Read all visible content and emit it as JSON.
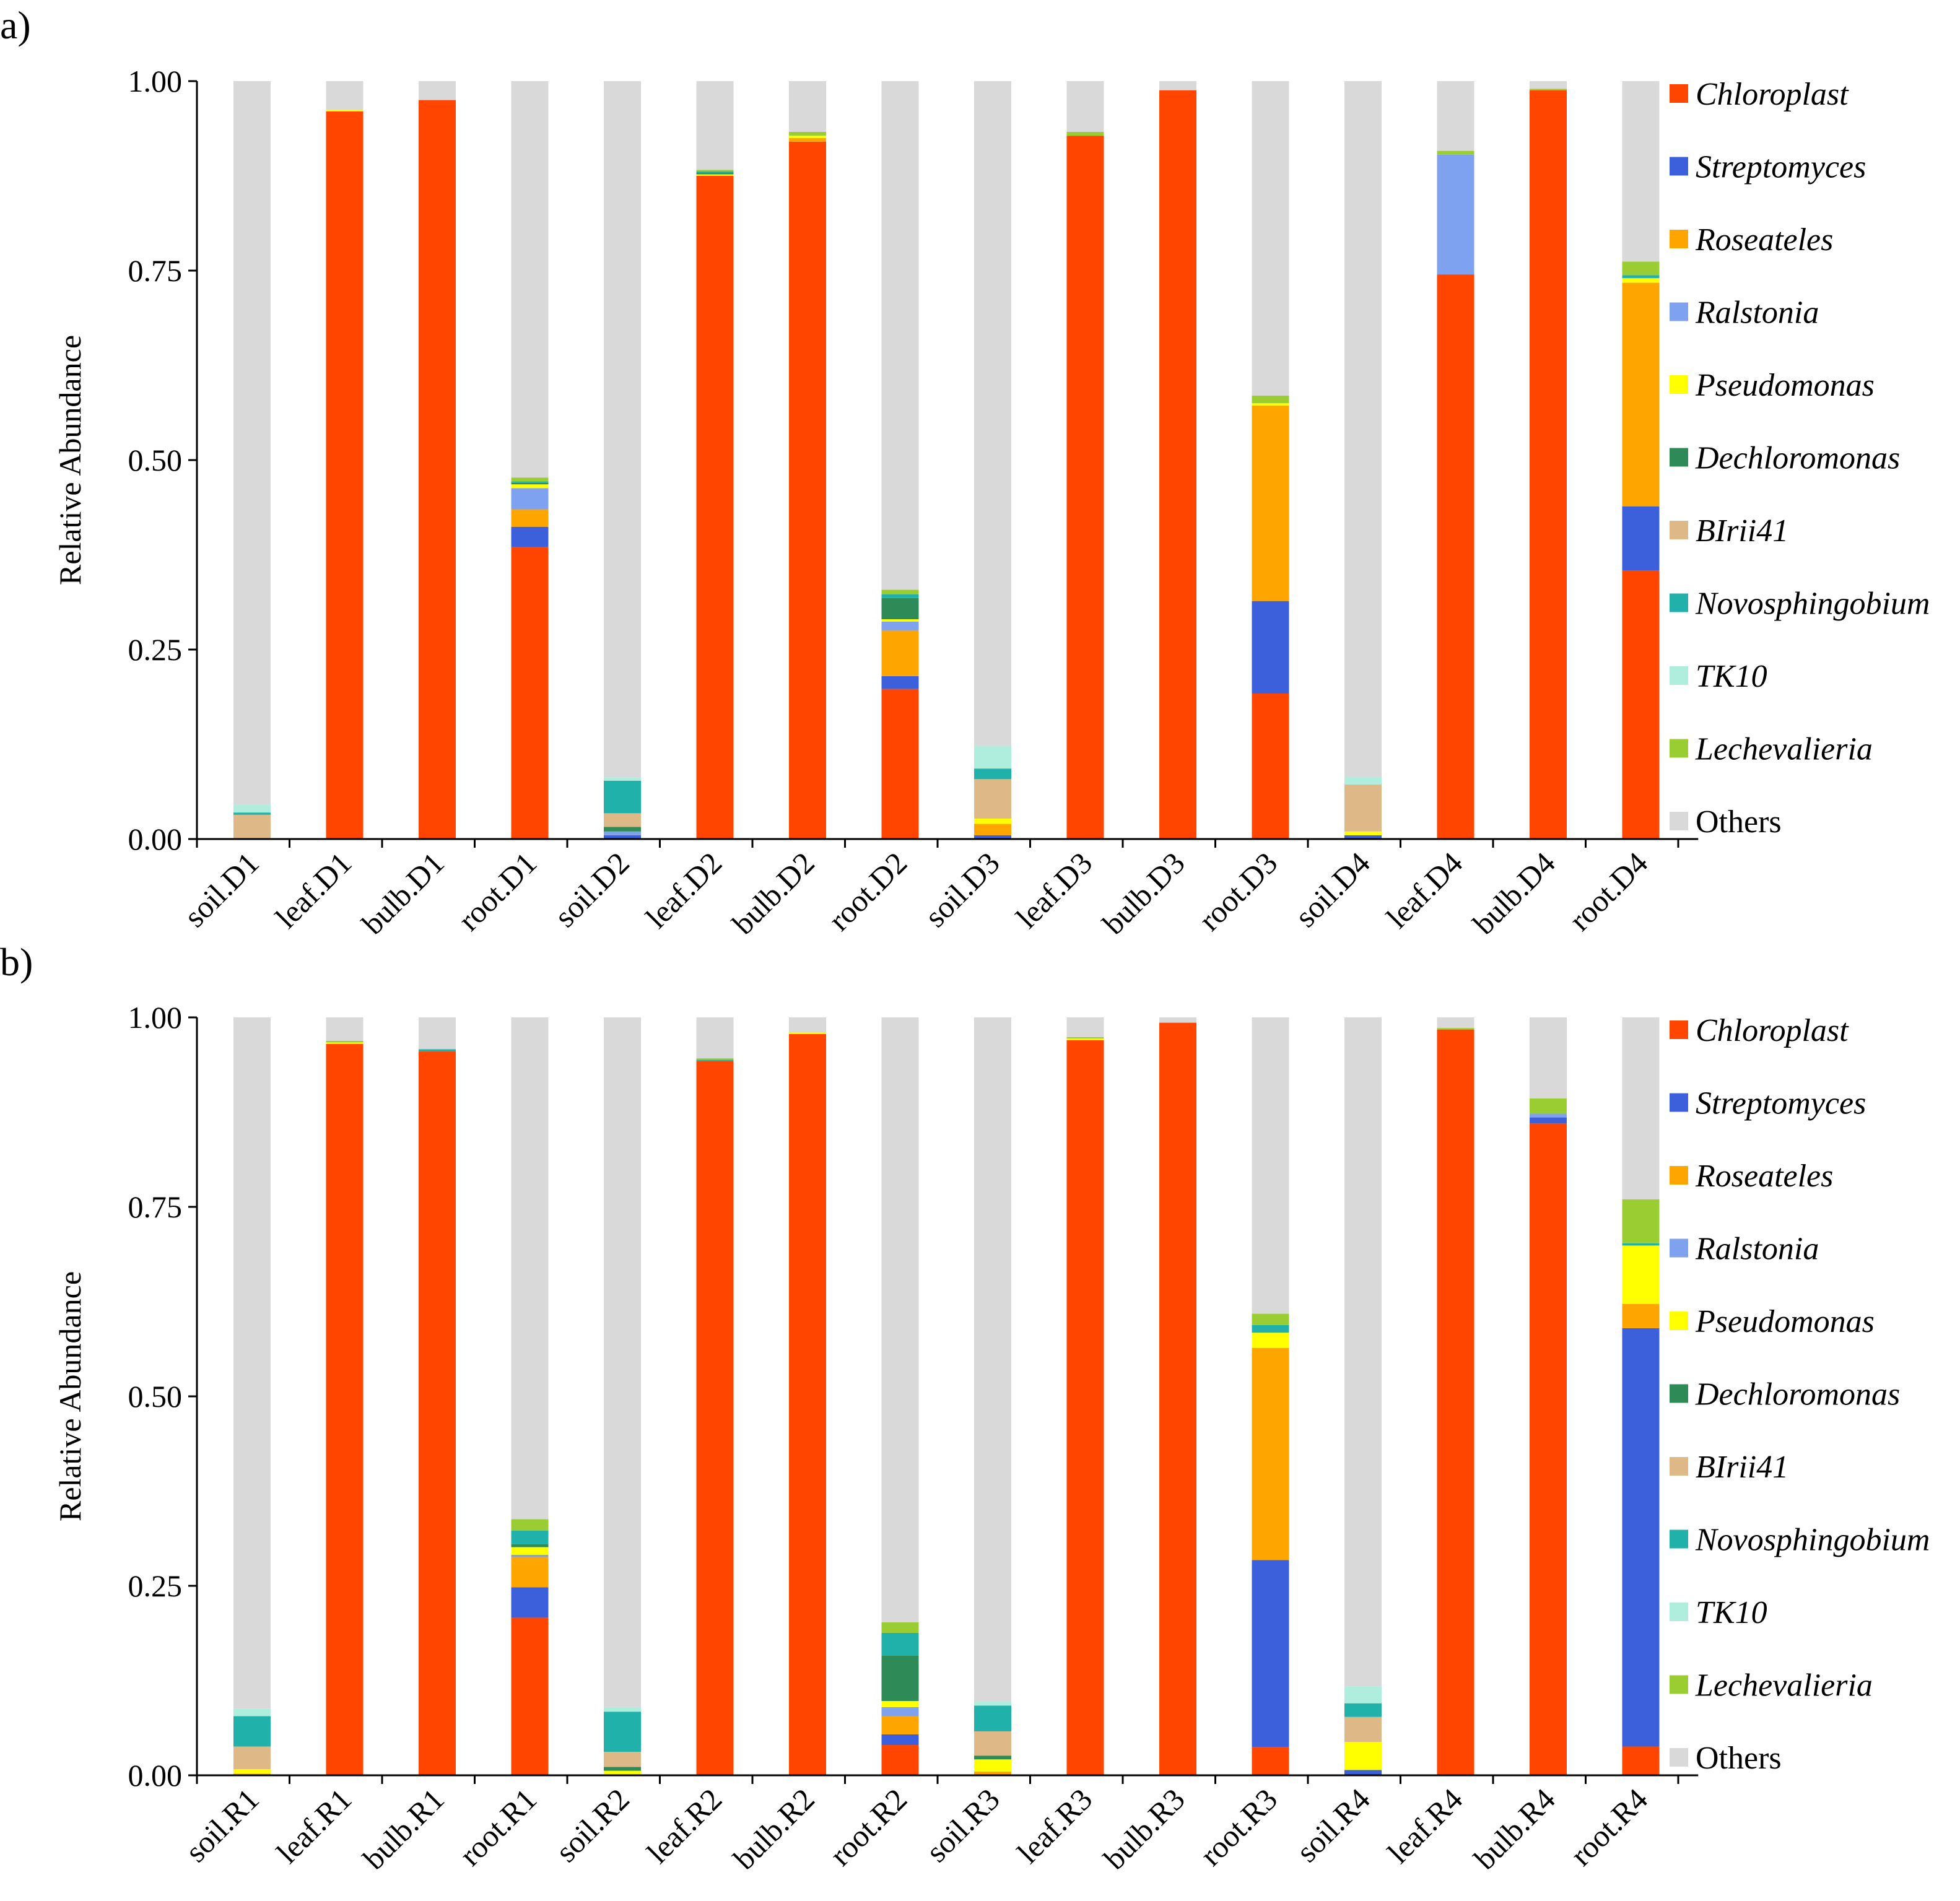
{
  "chart_data": [
    {
      "type": "stacked-bar",
      "panel_label": "a)",
      "ylabel": "Relative Abundance",
      "ylim": [
        0,
        1
      ],
      "yticks": [
        "0.00",
        "0.25",
        "0.50",
        "0.75",
        "1.00"
      ],
      "categories": [
        "soil.D1",
        "leaf.D1",
        "bulb.D1",
        "root.D1",
        "soil.D2",
        "leaf.D2",
        "bulb.D2",
        "root.D2",
        "soil.D3",
        "leaf.D3",
        "bulb.D3",
        "root.D3",
        "soil.D4",
        "leaf.D4",
        "bulb.D4",
        "root.D4"
      ],
      "series": [
        {
          "name": "Chloroplast",
          "color": "#FF4500",
          "values": [
            0.0,
            0.96,
            0.975,
            0.385,
            0.0,
            0.875,
            0.92,
            0.198,
            0.0,
            0.928,
            0.988,
            0.192,
            0.0,
            0.745,
            0.988,
            0.354
          ]
        },
        {
          "name": "Streptomyces",
          "color": "#3C5FDC",
          "values": [
            0.0,
            0.0,
            0.0,
            0.027,
            0.005,
            0.0,
            0.0,
            0.017,
            0.005,
            0.0,
            0.0,
            0.122,
            0.005,
            0.0,
            0.0,
            0.085
          ]
        },
        {
          "name": "Roseateles",
          "color": "#FFA500",
          "values": [
            0.0,
            0.0,
            0.0,
            0.023,
            0.0,
            0.0,
            0.005,
            0.06,
            0.015,
            0.0,
            0.0,
            0.258,
            0.0,
            0.0,
            0.0,
            0.295
          ]
        },
        {
          "name": "Ralstonia",
          "color": "#7FA2F0",
          "values": [
            0.0,
            0.0,
            0.0,
            0.028,
            0.005,
            0.0,
            0.0,
            0.012,
            0.0,
            0.0,
            0.0,
            0.0,
            0.0,
            0.158,
            0.0,
            0.0
          ]
        },
        {
          "name": "Pseudomonas",
          "color": "#FFFF00",
          "values": [
            0.0,
            0.002,
            0.0,
            0.005,
            0.0,
            0.002,
            0.003,
            0.003,
            0.007,
            0.0,
            0.0,
            0.003,
            0.005,
            0.0,
            0.0,
            0.006
          ]
        },
        {
          "name": "Dechloromonas",
          "color": "#2E8B57",
          "values": [
            0.0,
            0.0,
            0.0,
            0.002,
            0.006,
            0.002,
            0.0,
            0.028,
            0.0,
            0.0,
            0.0,
            0.0,
            0.0,
            0.0,
            0.0,
            0.0
          ]
        },
        {
          "name": "BIrii41",
          "color": "#DEB887",
          "values": [
            0.032,
            0.0,
            0.0,
            0.0,
            0.018,
            0.0,
            0.0,
            0.0,
            0.052,
            0.0,
            0.0,
            0.0,
            0.062,
            0.0,
            0.0,
            0.0
          ]
        },
        {
          "name": "Novosphingobium",
          "color": "#20B2AA",
          "values": [
            0.003,
            0.0,
            0.0,
            0.002,
            0.043,
            0.002,
            0.0,
            0.005,
            0.014,
            0.0,
            0.0,
            0.0,
            0.0,
            0.0,
            0.0,
            0.004
          ]
        },
        {
          "name": "TK10",
          "color": "#AFEEDD",
          "values": [
            0.01,
            0.0,
            0.0,
            0.0,
            0.004,
            0.0,
            0.0,
            0.0,
            0.03,
            0.0,
            0.0,
            0.0,
            0.01,
            0.0,
            0.0,
            0.0
          ]
        },
        {
          "name": "Lechevalieria",
          "color": "#9ACD32",
          "values": [
            0.0,
            0.0,
            0.0,
            0.005,
            0.0,
            0.002,
            0.005,
            0.006,
            0.0,
            0.005,
            0.0,
            0.01,
            0.0,
            0.005,
            0.002,
            0.018
          ]
        },
        {
          "name": "Others",
          "color": "#D9D9D9",
          "values": [
            0.955,
            0.038,
            0.025,
            0.523,
            0.919,
            0.117,
            0.067,
            0.671,
            0.877,
            0.067,
            0.012,
            0.415,
            0.918,
            0.092,
            0.01,
            0.238
          ]
        }
      ]
    },
    {
      "type": "stacked-bar",
      "panel_label": "b)",
      "ylabel": "Relative Abundance",
      "ylim": [
        0,
        1
      ],
      "yticks": [
        "0.00",
        "0.25",
        "0.50",
        "0.75",
        "1.00"
      ],
      "categories": [
        "soil.R1",
        "leaf.R1",
        "bulb.R1",
        "root.R1",
        "soil.R2",
        "leaf.R2",
        "bulb.R2",
        "root.R2",
        "soil.R3",
        "leaf.R3",
        "bulb.R3",
        "root.R3",
        "soil.R4",
        "leaf.R4",
        "bulb.R4",
        "root.R4"
      ],
      "series": [
        {
          "name": "Chloroplast",
          "color": "#FF4500",
          "values": [
            0.0,
            0.965,
            0.955,
            0.208,
            0.0,
            0.942,
            0.978,
            0.04,
            0.0,
            0.97,
            0.993,
            0.037,
            0.0,
            0.984,
            0.86,
            0.038
          ]
        },
        {
          "name": "Streptomyces",
          "color": "#3C5FDC",
          "values": [
            0.0,
            0.0,
            0.0,
            0.04,
            0.0,
            0.0,
            0.0,
            0.014,
            0.0,
            0.0,
            0.0,
            0.247,
            0.007,
            0.0,
            0.008,
            0.552
          ]
        },
        {
          "name": "Roseateles",
          "color": "#FFA500",
          "values": [
            0.002,
            0.0,
            0.0,
            0.04,
            0.0,
            0.0,
            0.0,
            0.024,
            0.005,
            0.0,
            0.0,
            0.28,
            0.0,
            0.0,
            0.0,
            0.032
          ]
        },
        {
          "name": "Ralstonia",
          "color": "#7FA2F0",
          "values": [
            0.0,
            0.0,
            0.0,
            0.003,
            0.0,
            0.0,
            0.0,
            0.012,
            0.0,
            0.0,
            0.0,
            0.0,
            0.0,
            0.0,
            0.005,
            0.0
          ]
        },
        {
          "name": "Pseudomonas",
          "color": "#FFFF00",
          "values": [
            0.006,
            0.002,
            0.0,
            0.01,
            0.006,
            0.0,
            0.002,
            0.008,
            0.016,
            0.002,
            0.0,
            0.02,
            0.037,
            0.0,
            0.0,
            0.077
          ]
        },
        {
          "name": "Dechloromonas",
          "color": "#2E8B57",
          "values": [
            0.0,
            0.0,
            0.0,
            0.004,
            0.005,
            0.0,
            0.0,
            0.06,
            0.005,
            0.0,
            0.0,
            0.0,
            0.0,
            0.0,
            0.0,
            0.0
          ]
        },
        {
          "name": "BIrii41",
          "color": "#DEB887",
          "values": [
            0.03,
            0.0,
            0.0,
            0.0,
            0.02,
            0.0,
            0.0,
            0.0,
            0.032,
            0.0,
            0.0,
            0.0,
            0.033,
            0.0,
            0.0,
            0.0
          ]
        },
        {
          "name": "Novosphingobium",
          "color": "#20B2AA",
          "values": [
            0.04,
            0.0,
            0.003,
            0.018,
            0.053,
            0.002,
            0.0,
            0.03,
            0.034,
            0.0,
            0.0,
            0.01,
            0.018,
            0.0,
            0.0,
            0.003
          ]
        },
        {
          "name": "TK10",
          "color": "#AFEEDD",
          "values": [
            0.01,
            0.0,
            0.0,
            0.0,
            0.006,
            0.0,
            0.0,
            0.0,
            0.006,
            0.0,
            0.0,
            0.0,
            0.022,
            0.0,
            0.0,
            0.0
          ]
        },
        {
          "name": "Lechevalieria",
          "color": "#9ACD32",
          "values": [
            0.0,
            0.002,
            0.0,
            0.015,
            0.0,
            0.002,
            0.0,
            0.014,
            0.0,
            0.002,
            0.0,
            0.015,
            0.0,
            0.002,
            0.02,
            0.058
          ]
        },
        {
          "name": "Others",
          "color": "#D9D9D9",
          "values": [
            0.912,
            0.031,
            0.042,
            0.662,
            0.91,
            0.054,
            0.02,
            0.798,
            0.902,
            0.026,
            0.007,
            0.391,
            0.883,
            0.014,
            0.107,
            0.24
          ]
        }
      ]
    }
  ]
}
